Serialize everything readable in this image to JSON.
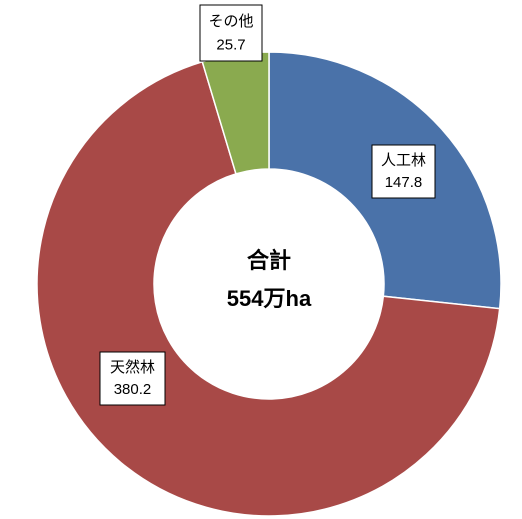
{
  "chart_data": {
    "type": "donut",
    "categories": [
      "人工林",
      "天然林",
      "その他"
    ],
    "values": [
      147.8,
      380.2,
      25.7
    ],
    "colors": [
      "#4a72a9",
      "#a84947",
      "#8aaa4f"
    ],
    "annotations": [
      "合計",
      "554万ha"
    ]
  }
}
